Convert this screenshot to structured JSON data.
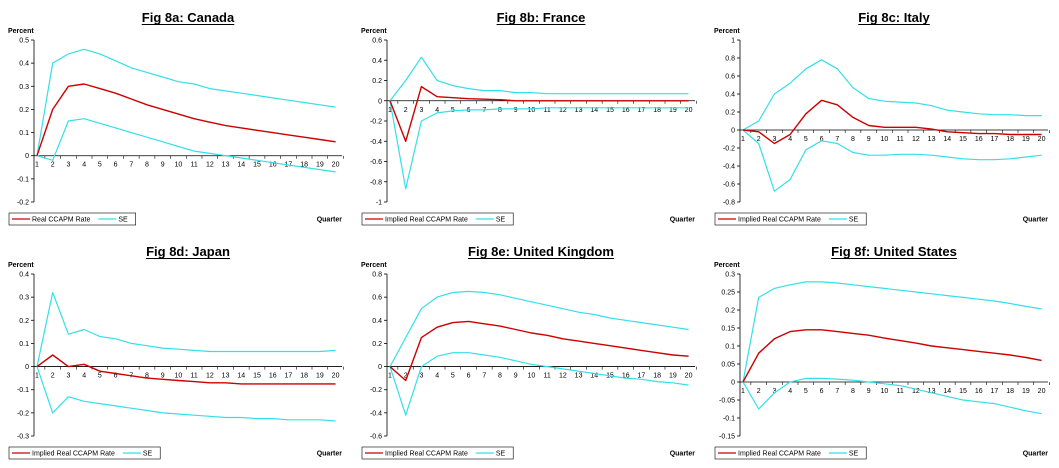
{
  "colors": {
    "main": "#cc0000",
    "se": "#33e0e8",
    "axis": "#000000"
  },
  "chart_data": [
    {
      "type": "line",
      "title": "Fig 8a:  Canada",
      "ylabel": "Percent",
      "xlabel": "Quarter",
      "ylim": [
        -0.2,
        0.5
      ],
      "yticks": [
        "-0.2",
        "-0.1",
        "0",
        "0.1",
        "0.2",
        "0.3",
        "0.4",
        "0.5"
      ],
      "x": [
        1,
        2,
        3,
        4,
        5,
        6,
        7,
        8,
        9,
        10,
        11,
        12,
        13,
        14,
        15,
        16,
        17,
        18,
        19,
        20
      ],
      "series": [
        {
          "name": "Real CCAPM Rate",
          "role": "main",
          "values": [
            0.0,
            0.2,
            0.3,
            0.31,
            0.29,
            0.27,
            0.245,
            0.22,
            0.2,
            0.18,
            0.16,
            0.145,
            0.13,
            0.12,
            0.11,
            0.1,
            0.09,
            0.08,
            0.07,
            0.06
          ]
        },
        {
          "name": "SE",
          "role": "se",
          "values": [
            0.0,
            0.4,
            0.44,
            0.46,
            0.44,
            0.41,
            0.38,
            0.36,
            0.34,
            0.32,
            0.31,
            0.29,
            0.28,
            0.27,
            0.26,
            0.25,
            0.24,
            0.23,
            0.22,
            0.21
          ]
        },
        {
          "name": "SE",
          "role": "se",
          "showLegend": false,
          "values": [
            0.0,
            -0.02,
            0.15,
            0.16,
            0.14,
            0.12,
            0.1,
            0.08,
            0.06,
            0.04,
            0.02,
            0.01,
            0.0,
            -0.01,
            -0.02,
            -0.03,
            -0.04,
            -0.05,
            -0.06,
            -0.07
          ]
        }
      ]
    },
    {
      "type": "line",
      "title": "Fig 8b:  France",
      "ylabel": "Percent",
      "xlabel": "Quarter",
      "ylim": [
        -1.0,
        0.6
      ],
      "yticks": [
        "-1",
        "-0.8",
        "-0.6",
        "-0.4",
        "-0.2",
        "0",
        "0.2",
        "0.4",
        "0.6"
      ],
      "x": [
        1,
        2,
        3,
        4,
        5,
        6,
        7,
        8,
        9,
        10,
        11,
        12,
        13,
        14,
        15,
        16,
        17,
        18,
        19,
        20
      ],
      "series": [
        {
          "name": "Implied Real CCAPM Rate",
          "role": "main",
          "values": [
            0.0,
            -0.4,
            0.14,
            0.04,
            0.03,
            0.02,
            0.015,
            0.01,
            0.0,
            0.0,
            0.0,
            0.0,
            0.0,
            0.0,
            0.0,
            0.0,
            0.0,
            0.0,
            0.0,
            0.0
          ]
        },
        {
          "name": "SE",
          "role": "se",
          "values": [
            0.0,
            0.2,
            0.43,
            0.2,
            0.15,
            0.12,
            0.1,
            0.1,
            0.08,
            0.08,
            0.07,
            0.07,
            0.07,
            0.07,
            0.07,
            0.07,
            0.07,
            0.07,
            0.07,
            0.07
          ]
        },
        {
          "name": "SE",
          "role": "se",
          "showLegend": false,
          "values": [
            0.0,
            -0.87,
            -0.2,
            -0.12,
            -0.1,
            -0.09,
            -0.09,
            -0.08,
            -0.08,
            -0.08,
            -0.07,
            -0.07,
            -0.07,
            -0.07,
            -0.07,
            -0.07,
            -0.07,
            -0.07,
            -0.07,
            -0.07
          ]
        }
      ]
    },
    {
      "type": "line",
      "title": "Fig 8c:  Italy",
      "ylabel": "Percent",
      "xlabel": "Quarter",
      "ylim": [
        -0.8,
        1.0
      ],
      "yticks": [
        "-0.8",
        "-0.6",
        "-0.4",
        "-0.2",
        "0",
        "0.2",
        "0.4",
        "0.6",
        "0.8",
        "1"
      ],
      "x": [
        1,
        2,
        3,
        4,
        5,
        6,
        7,
        8,
        9,
        10,
        11,
        12,
        13,
        14,
        15,
        16,
        17,
        18,
        19,
        20
      ],
      "series": [
        {
          "name": "Implied Real CCAPM Rate",
          "role": "main",
          "values": [
            0.0,
            -0.02,
            -0.15,
            -0.05,
            0.18,
            0.33,
            0.28,
            0.14,
            0.05,
            0.03,
            0.03,
            0.03,
            0.01,
            -0.02,
            -0.03,
            -0.04,
            -0.04,
            -0.05,
            -0.05,
            -0.05
          ]
        },
        {
          "name": "SE",
          "role": "se",
          "values": [
            0.0,
            0.1,
            0.4,
            0.52,
            0.68,
            0.78,
            0.68,
            0.47,
            0.35,
            0.32,
            0.31,
            0.3,
            0.27,
            0.22,
            0.2,
            0.18,
            0.17,
            0.17,
            0.16,
            0.16
          ]
        },
        {
          "name": "SE",
          "role": "se",
          "showLegend": false,
          "values": [
            0.0,
            -0.15,
            -0.68,
            -0.55,
            -0.22,
            -0.12,
            -0.15,
            -0.25,
            -0.28,
            -0.28,
            -0.27,
            -0.27,
            -0.28,
            -0.3,
            -0.32,
            -0.33,
            -0.33,
            -0.32,
            -0.3,
            -0.28
          ]
        }
      ]
    },
    {
      "type": "line",
      "title": "Fig 8d:  Japan",
      "ylabel": "Percent",
      "xlabel": "Quarter",
      "ylim": [
        -0.3,
        0.4
      ],
      "yticks": [
        "-0.3",
        "-0.2",
        "-0.1",
        "0",
        "0.1",
        "0.2",
        "0.3",
        "0.4"
      ],
      "x": [
        1,
        2,
        3,
        4,
        5,
        6,
        7,
        8,
        9,
        10,
        11,
        12,
        13,
        14,
        15,
        16,
        17,
        18,
        19,
        20
      ],
      "series": [
        {
          "name": "Implied Real CCAPM Rate",
          "role": "main",
          "values": [
            0.0,
            0.05,
            0.0,
            0.01,
            -0.02,
            -0.03,
            -0.04,
            -0.05,
            -0.055,
            -0.06,
            -0.065,
            -0.07,
            -0.07,
            -0.075,
            -0.075,
            -0.075,
            -0.075,
            -0.075,
            -0.075,
            -0.075
          ]
        },
        {
          "name": "SE",
          "role": "se",
          "values": [
            0.0,
            0.32,
            0.14,
            0.16,
            0.13,
            0.12,
            0.1,
            0.09,
            0.08,
            0.075,
            0.07,
            0.065,
            0.065,
            0.065,
            0.065,
            0.065,
            0.065,
            0.065,
            0.065,
            0.07
          ]
        },
        {
          "name": "SE",
          "role": "se",
          "showLegend": false,
          "values": [
            0.0,
            -0.2,
            -0.13,
            -0.15,
            -0.16,
            -0.17,
            -0.18,
            -0.19,
            -0.2,
            -0.205,
            -0.21,
            -0.215,
            -0.22,
            -0.22,
            -0.225,
            -0.225,
            -0.23,
            -0.23,
            -0.23,
            -0.235
          ]
        }
      ]
    },
    {
      "type": "line",
      "title": "Fig 8e:  United Kingdom",
      "ylabel": "Percent",
      "xlabel": "Quarter",
      "ylim": [
        -0.6,
        0.8
      ],
      "yticks": [
        "-0.6",
        "-0.4",
        "-0.2",
        "0",
        "0.2",
        "0.4",
        "0.6",
        "0.8"
      ],
      "x": [
        1,
        2,
        3,
        4,
        5,
        6,
        7,
        8,
        9,
        10,
        11,
        12,
        13,
        14,
        15,
        16,
        17,
        18,
        19,
        20
      ],
      "series": [
        {
          "name": "Implied Real CCAPM Rate",
          "role": "main",
          "values": [
            0.0,
            -0.12,
            0.25,
            0.34,
            0.38,
            0.39,
            0.37,
            0.35,
            0.32,
            0.29,
            0.27,
            0.24,
            0.22,
            0.2,
            0.18,
            0.16,
            0.14,
            0.12,
            0.1,
            0.09
          ]
        },
        {
          "name": "SE",
          "role": "se",
          "values": [
            0.0,
            0.25,
            0.5,
            0.6,
            0.64,
            0.65,
            0.64,
            0.62,
            0.59,
            0.56,
            0.53,
            0.5,
            0.47,
            0.45,
            0.42,
            0.4,
            0.38,
            0.36,
            0.34,
            0.32
          ]
        },
        {
          "name": "SE",
          "role": "se",
          "showLegend": false,
          "values": [
            0.0,
            -0.42,
            0.0,
            0.09,
            0.12,
            0.12,
            0.1,
            0.08,
            0.05,
            0.02,
            0.0,
            -0.02,
            -0.04,
            -0.06,
            -0.08,
            -0.1,
            -0.11,
            -0.13,
            -0.14,
            -0.16
          ]
        }
      ]
    },
    {
      "type": "line",
      "title": "Fig 8f:  United States",
      "ylabel": "Percent",
      "xlabel": "Quarter",
      "ylim": [
        -0.15,
        0.3
      ],
      "yticks": [
        "-0.15",
        "-0.1",
        "-0.05",
        "0",
        "0.05",
        "0.1",
        "0.15",
        "0.2",
        "0.25",
        "0.3"
      ],
      "x": [
        1,
        2,
        3,
        4,
        5,
        6,
        7,
        8,
        9,
        10,
        11,
        12,
        13,
        14,
        15,
        16,
        17,
        18,
        19,
        20
      ],
      "series": [
        {
          "name": "Implied Real CCAPM Rate",
          "role": "main",
          "values": [
            0.0,
            0.08,
            0.12,
            0.14,
            0.145,
            0.145,
            0.14,
            0.135,
            0.13,
            0.122,
            0.115,
            0.108,
            0.1,
            0.095,
            0.09,
            0.085,
            0.08,
            0.075,
            0.068,
            0.06
          ]
        },
        {
          "name": "SE",
          "role": "se",
          "values": [
            0.0,
            0.235,
            0.26,
            0.27,
            0.278,
            0.278,
            0.275,
            0.27,
            0.265,
            0.26,
            0.255,
            0.25,
            0.245,
            0.24,
            0.235,
            0.23,
            0.225,
            0.218,
            0.21,
            0.203
          ]
        },
        {
          "name": "SE",
          "role": "se",
          "showLegend": false,
          "values": [
            0.0,
            -0.075,
            -0.03,
            0.0,
            0.01,
            0.01,
            0.008,
            0.005,
            0.0,
            -0.005,
            -0.01,
            -0.02,
            -0.03,
            -0.04,
            -0.05,
            -0.055,
            -0.06,
            -0.07,
            -0.08,
            -0.088
          ]
        }
      ]
    }
  ]
}
